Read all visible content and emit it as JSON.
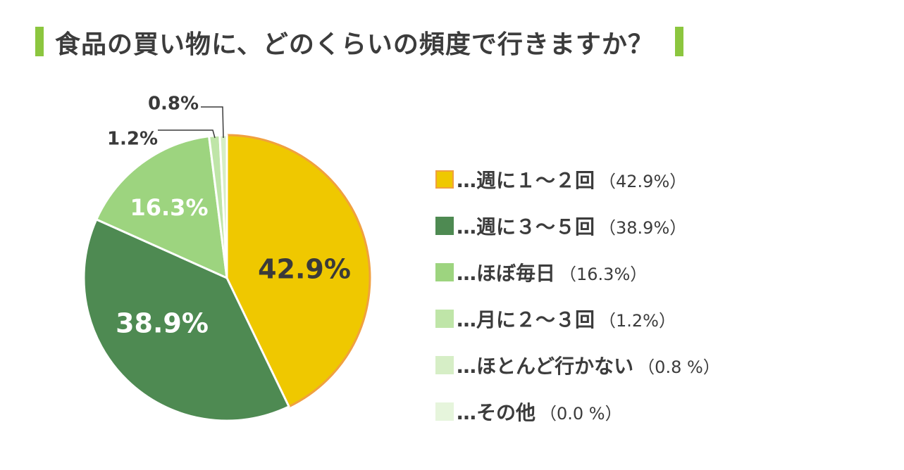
{
  "title": "食品の買い物に、どのくらいの頻度で行きますか？",
  "accent_color": "#8cc63f",
  "chart_data": {
    "type": "pie",
    "title": "食品の買い物に、どのくらいの頻度で行きますか？",
    "slices": [
      {
        "label": "…週に１〜２回",
        "value": 42.9,
        "label_text": "42.9%",
        "legend_pct": "（42.9%）",
        "color": "#efc800",
        "stroke": "#f0a040"
      },
      {
        "label": "…週に３〜５回",
        "value": 38.9,
        "label_text": "38.9%",
        "legend_pct": "（38.9%）",
        "color": "#4e8a52",
        "stroke": "#ffffff"
      },
      {
        "label": "…ほぼ毎日",
        "value": 16.3,
        "label_text": "16.3%",
        "legend_pct": "（16.3%）",
        "color": "#9dd47f",
        "stroke": "#ffffff"
      },
      {
        "label": "…月に２〜３回",
        "value": 1.2,
        "label_text": "1.2%",
        "legend_pct": "（1.2%）",
        "color": "#bfe5a8",
        "stroke": "#ffffff"
      },
      {
        "label": "…ほとんど行かない",
        "value": 0.8,
        "label_text": "0.8%",
        "legend_pct": "（0.8 %）",
        "color": "#d6eec6",
        "stroke": "#ffffff"
      },
      {
        "label": "…その他",
        "value": 0.0,
        "label_text": "",
        "legend_pct": "（0.0 %）",
        "color": "#e6f5dc",
        "stroke": "#ffffff"
      }
    ]
  }
}
